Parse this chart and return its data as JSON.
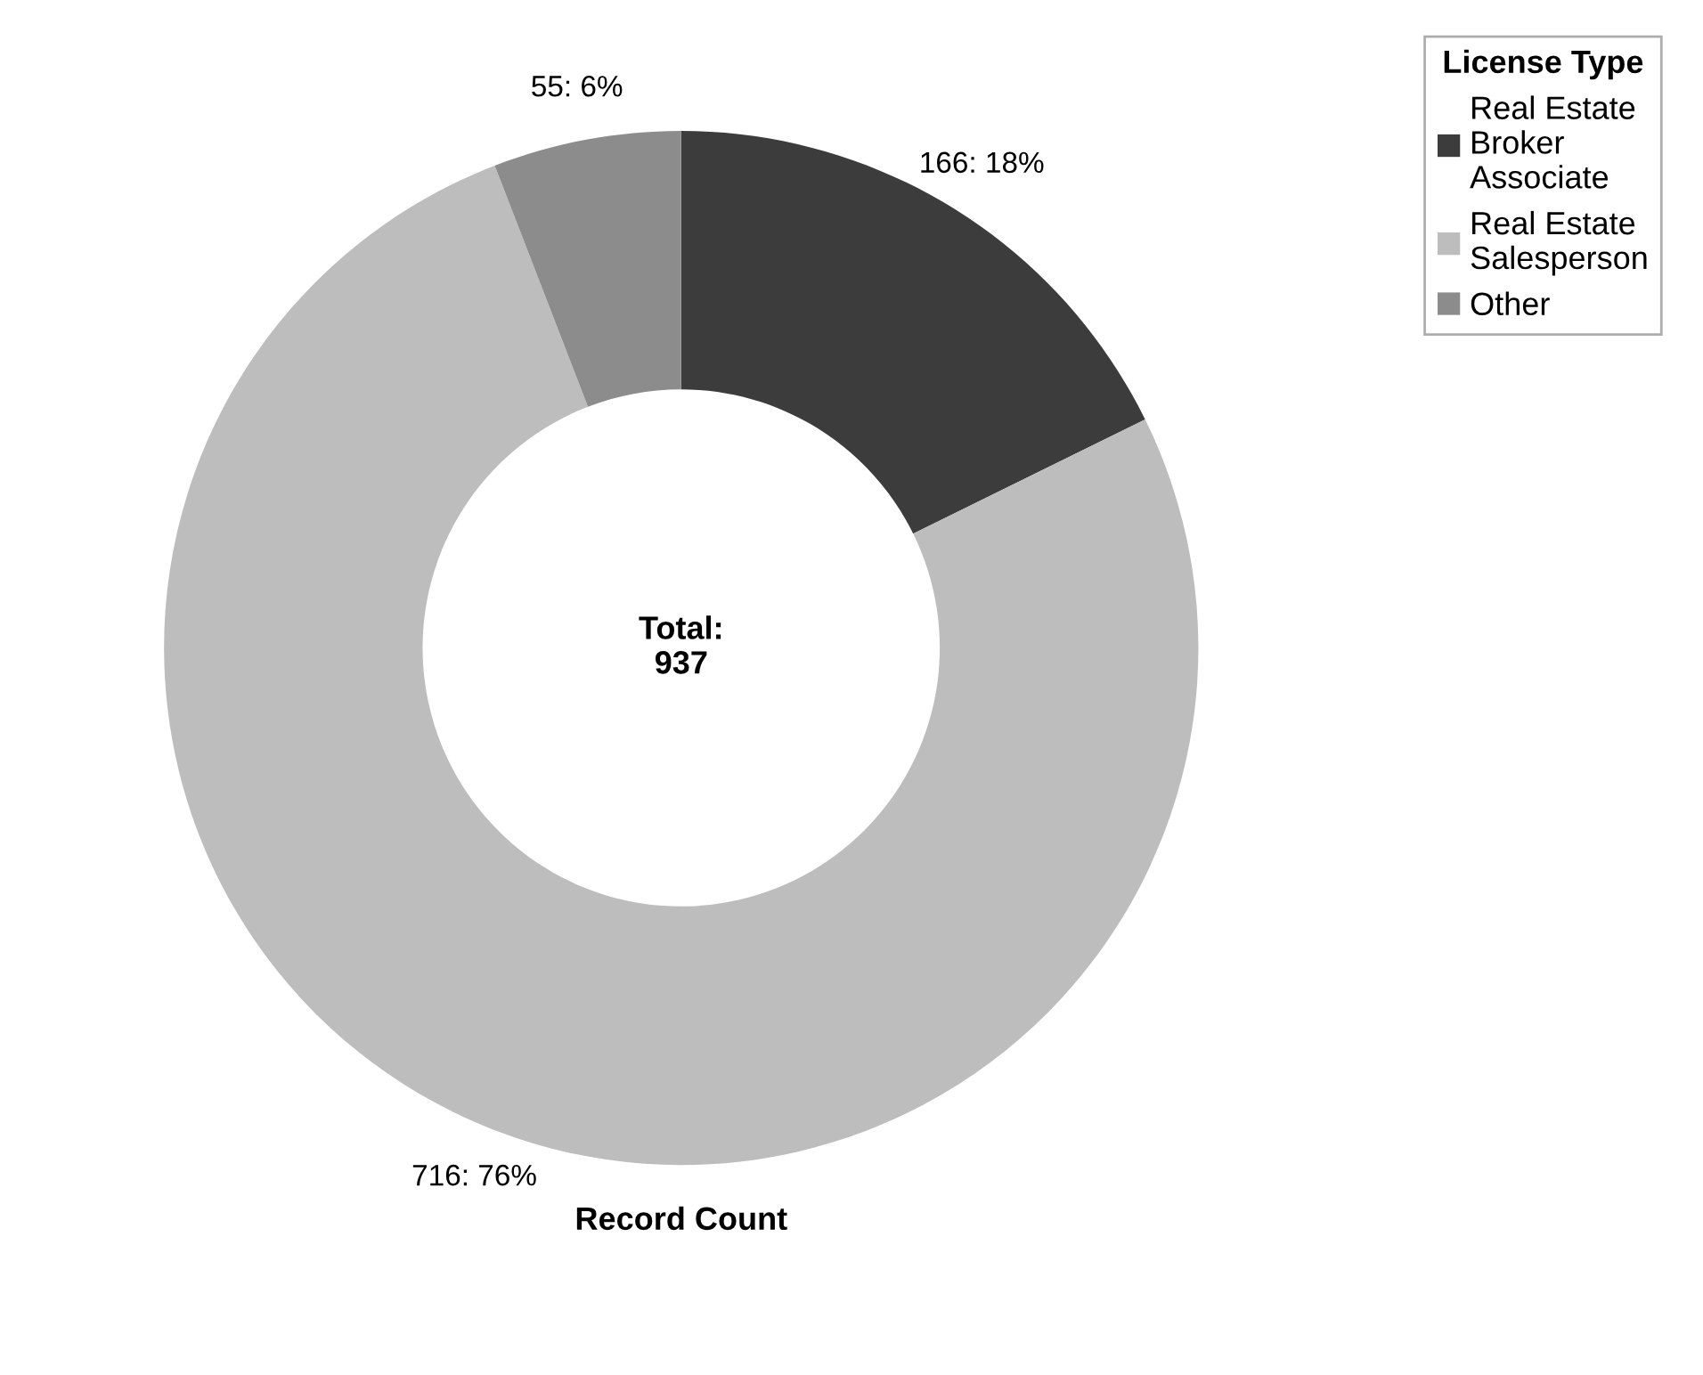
{
  "chart_data": {
    "type": "donut",
    "categories": [
      "Real Estate Broker Associate",
      "Real Estate Salesperson",
      "Other"
    ],
    "values": [
      166,
      716,
      55
    ],
    "colors": [
      "#3c3c3c",
      "#bdbdbd",
      "#8c8c8c"
    ],
    "value_labels": [
      "166: 18%",
      "716: 76%",
      "55: 6%"
    ],
    "legend_title": "License Type",
    "legend": "top right",
    "xlabel": "Record Count",
    "annotations": [
      "Total:\n937"
    ]
  }
}
